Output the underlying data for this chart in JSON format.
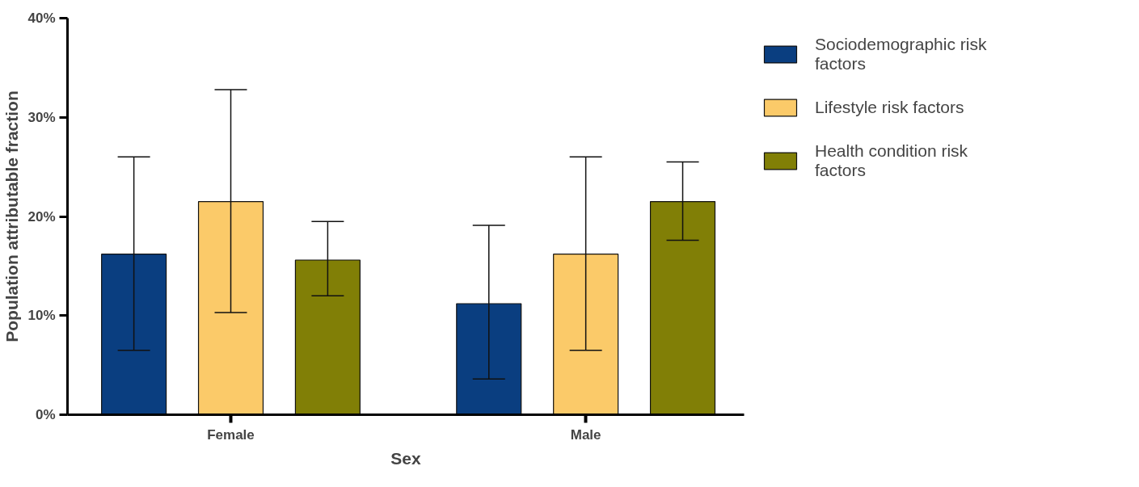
{
  "chart_data": {
    "type": "bar",
    "xlabel": "Sex",
    "ylabel": "Population attributable fraction",
    "categories": [
      "Female",
      "Male"
    ],
    "series": [
      {
        "name": "Sociodemographic risk factors",
        "color": "#0a3e80",
        "values": [
          16.2,
          11.2
        ],
        "errors": [
          [
            6.5,
            26.0
          ],
          [
            3.6,
            19.1
          ]
        ]
      },
      {
        "name": "Lifestyle risk factors",
        "color": "#fbca69",
        "values": [
          21.5,
          16.2
        ],
        "errors": [
          [
            10.3,
            32.8
          ],
          [
            6.5,
            26.0
          ]
        ]
      },
      {
        "name": "Health condition risk factors",
        "color": "#817f06",
        "values": [
          15.6,
          21.5
        ],
        "errors": [
          [
            12.0,
            19.5
          ],
          [
            17.6,
            25.5
          ]
        ]
      }
    ],
    "ylim": [
      0,
      40
    ],
    "yticks": [
      {
        "value": 0,
        "label": "0%"
      },
      {
        "value": 10,
        "label": "10%"
      },
      {
        "value": 20,
        "label": "20%"
      },
      {
        "value": 30,
        "label": "30%"
      },
      {
        "value": 40,
        "label": "40%"
      }
    ],
    "grid": false,
    "legend": "top right"
  }
}
